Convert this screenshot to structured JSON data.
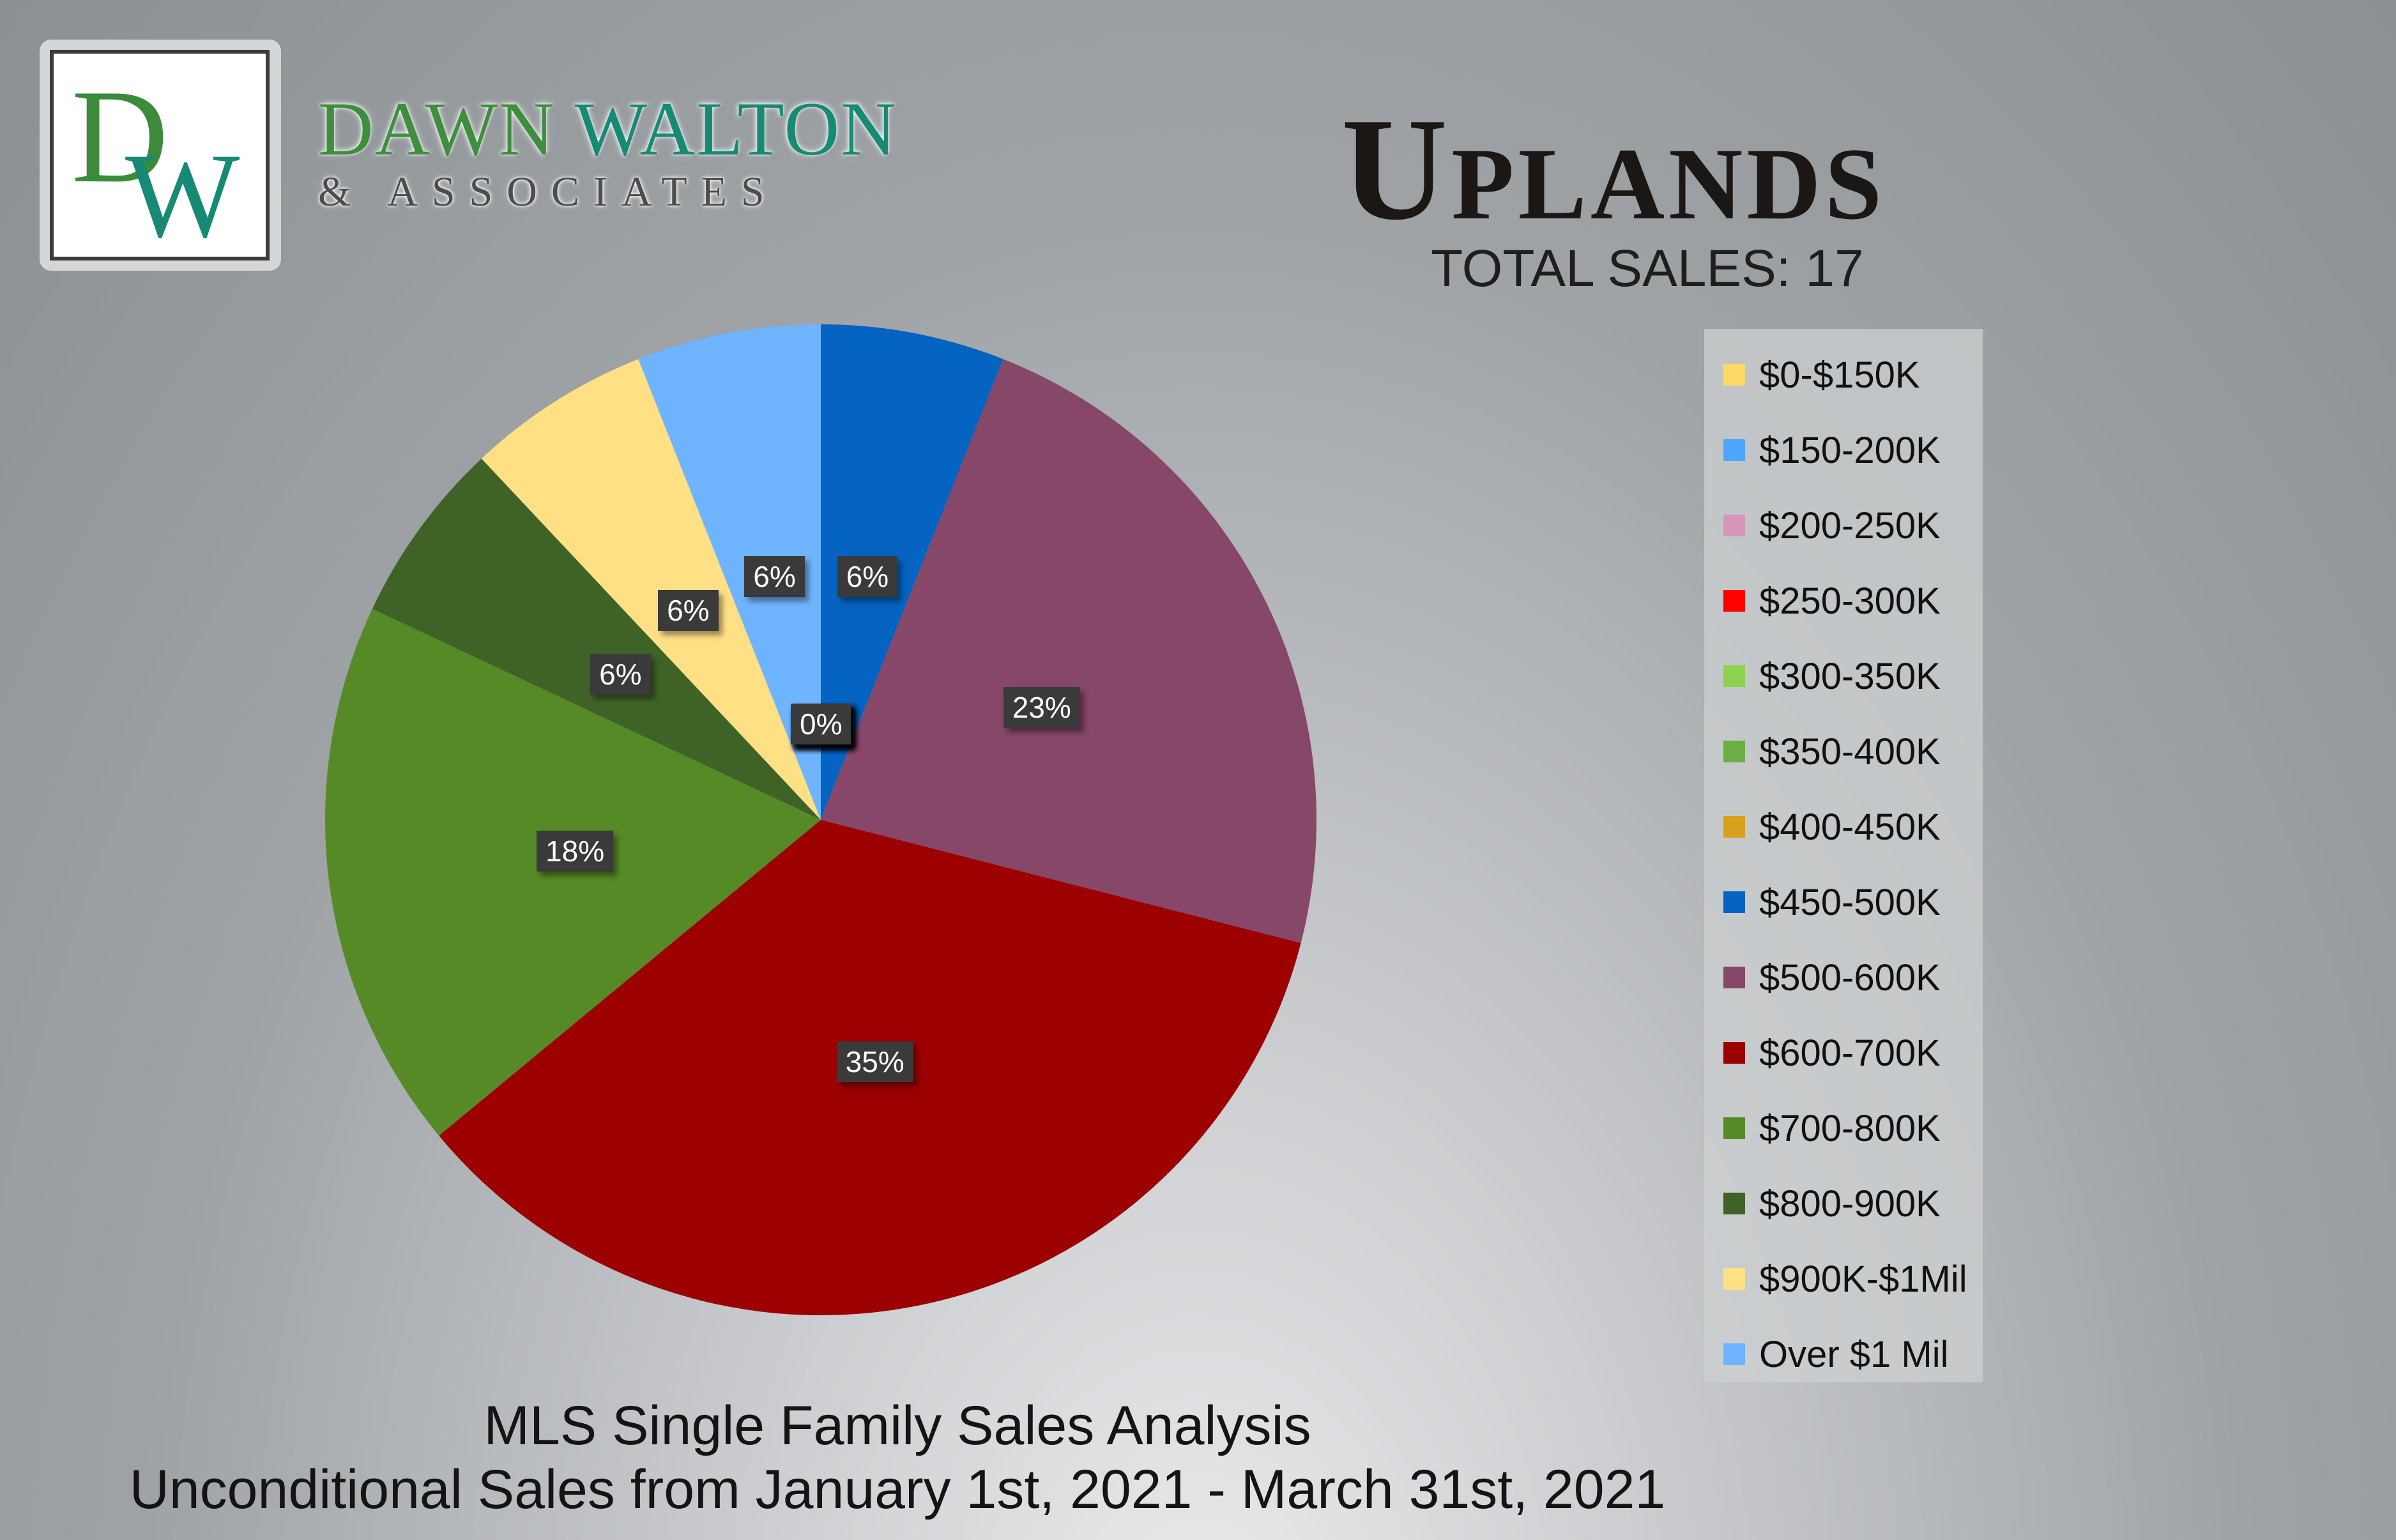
{
  "brand": {
    "initials": "DW",
    "name_part1": "DAWN",
    "name_part2": "WALTON",
    "sub": "& ASSOCIATES"
  },
  "title": "Uplands",
  "total_sales_label": "TOTAL SALES: 17",
  "subtitle_line1": "MLS Single Family Sales Analysis",
  "subtitle_line2": "Unconditional Sales from January 1st, 2021 - March 31st, 2021",
  "chart_data": {
    "type": "pie",
    "legend_position": "right",
    "categories": [
      "$0-$150K",
      "$150-200K",
      "$200-250K",
      "$250-300K",
      "$300-350K",
      "$350-400K",
      "$400-450K",
      "$450-500K",
      "$500-600K",
      "$600-700K",
      "$700-800K",
      "$800-900K",
      "$900K-$1Mil",
      "Over $1 Mil"
    ],
    "values": [
      0,
      0,
      0,
      0,
      0,
      0,
      0,
      6,
      23,
      35,
      18,
      6,
      6,
      6
    ],
    "labels": [
      "0%",
      "0%",
      "0%",
      "0%",
      "0%",
      "0%",
      "0%",
      "6%",
      "23%",
      "35%",
      "18%",
      "6%",
      "6%",
      "6%"
    ],
    "colors": [
      "#ffd966",
      "#4da6ff",
      "#d495b8",
      "#ff0000",
      "#8ed14f",
      "#6aae45",
      "#d9a01e",
      "#0563c1",
      "#874768",
      "#9c0000",
      "#568a27",
      "#3f6327",
      "#ffe085",
      "#6fb4ff"
    ]
  }
}
